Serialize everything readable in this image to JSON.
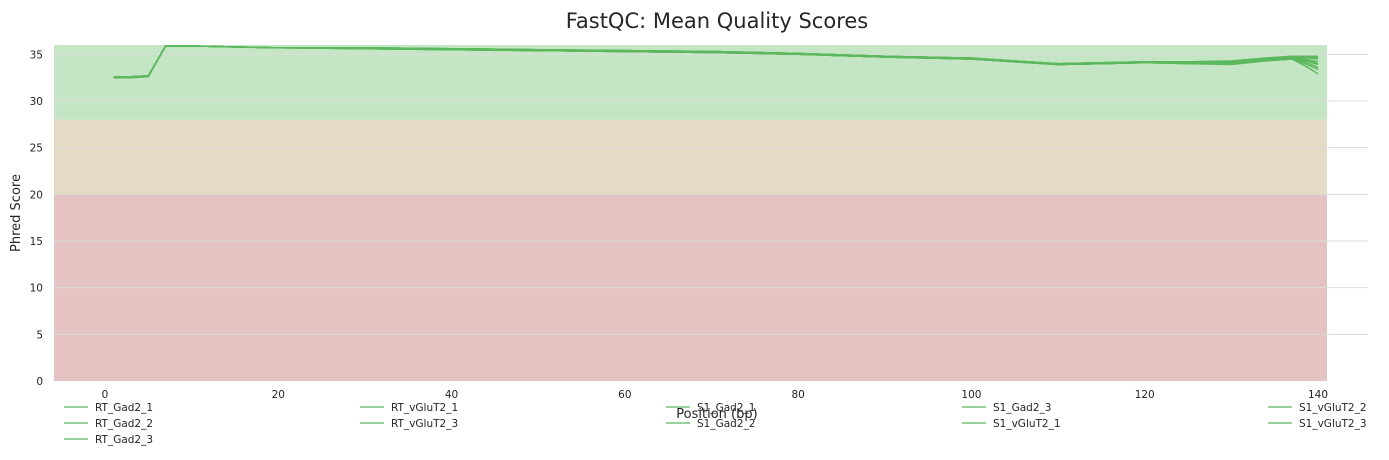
{
  "chart_data": {
    "type": "line",
    "title": "FastQC: Mean Quality Scores",
    "xlabel": "Position (bp)",
    "ylabel": "Phred Score",
    "xlim": [
      -6,
      141
    ],
    "ylim": [
      0,
      36
    ],
    "xticks": [
      0,
      20,
      40,
      60,
      80,
      100,
      120,
      140
    ],
    "yticks": [
      0,
      5,
      10,
      15,
      20,
      25,
      30,
      35
    ],
    "grid": true,
    "legend_position": "bottom",
    "bands": [
      {
        "from": 0,
        "to": 20,
        "color": "#e5c3c3"
      },
      {
        "from": 20,
        "to": 28,
        "color": "#e5dbc4"
      },
      {
        "from": 28,
        "to": 36,
        "color": "#c4e6c4"
      }
    ],
    "line_color": "#5cb85c",
    "x": [
      1,
      3,
      5,
      7,
      10,
      15,
      20,
      30,
      40,
      50,
      60,
      70,
      80,
      90,
      100,
      105,
      110,
      115,
      120,
      125,
      130,
      134,
      137,
      139,
      140
    ],
    "series": [
      {
        "name": "RT_Gad2_1",
        "values": [
          32.6,
          32.6,
          32.7,
          35.9,
          35.9,
          35.8,
          35.7,
          35.7,
          35.6,
          35.5,
          35.4,
          35.3,
          35.1,
          34.8,
          34.6,
          34.3,
          34.0,
          34.1,
          34.2,
          34.2,
          34.2,
          34.5,
          34.8,
          34.7,
          34.6
        ]
      },
      {
        "name": "RT_Gad2_2",
        "values": [
          32.5,
          32.5,
          32.6,
          35.9,
          35.9,
          35.8,
          35.7,
          35.7,
          35.5,
          35.4,
          35.3,
          35.2,
          35.0,
          34.7,
          34.5,
          34.2,
          33.9,
          34.0,
          34.1,
          34.1,
          34.0,
          34.4,
          34.6,
          34.2,
          33.9
        ]
      },
      {
        "name": "RT_Gad2_3",
        "values": [
          32.6,
          32.6,
          32.7,
          35.9,
          35.9,
          35.8,
          35.7,
          35.6,
          35.5,
          35.4,
          35.3,
          35.2,
          35.0,
          34.7,
          34.5,
          34.2,
          33.9,
          34.0,
          34.1,
          34.0,
          33.9,
          34.3,
          34.5,
          33.8,
          33.4
        ]
      },
      {
        "name": "RT_vGluT2_1",
        "values": [
          32.5,
          32.5,
          32.7,
          35.9,
          35.9,
          35.8,
          35.7,
          35.7,
          35.6,
          35.5,
          35.4,
          35.3,
          35.1,
          34.8,
          34.6,
          34.3,
          34.0,
          34.1,
          34.2,
          34.2,
          34.3,
          34.6,
          34.8,
          34.8,
          34.8
        ]
      },
      {
        "name": "RT_vGluT2_3",
        "values": [
          32.6,
          32.6,
          32.7,
          35.9,
          35.9,
          35.8,
          35.7,
          35.6,
          35.5,
          35.4,
          35.3,
          35.2,
          35.0,
          34.7,
          34.5,
          34.2,
          33.9,
          34.0,
          34.1,
          34.1,
          34.1,
          34.5,
          34.7,
          34.4,
          34.2
        ]
      },
      {
        "name": "S1_Gad2_1",
        "values": [
          32.6,
          32.6,
          32.7,
          35.9,
          35.9,
          35.8,
          35.7,
          35.7,
          35.6,
          35.5,
          35.4,
          35.3,
          35.1,
          34.8,
          34.6,
          34.3,
          34.0,
          34.1,
          34.2,
          34.2,
          34.2,
          34.5,
          34.7,
          34.6,
          34.5
        ]
      },
      {
        "name": "S1_Gad2_2",
        "values": [
          32.5,
          32.5,
          32.6,
          35.9,
          35.9,
          35.8,
          35.7,
          35.6,
          35.5,
          35.4,
          35.3,
          35.2,
          35.0,
          34.7,
          34.5,
          34.2,
          33.9,
          34.0,
          34.1,
          34.0,
          34.0,
          34.3,
          34.5,
          33.5,
          32.9
        ]
      },
      {
        "name": "S1_Gad2_3",
        "values": [
          32.6,
          32.6,
          32.7,
          35.9,
          35.9,
          35.8,
          35.7,
          35.7,
          35.5,
          35.4,
          35.3,
          35.2,
          35.0,
          34.7,
          34.5,
          34.2,
          33.9,
          34.0,
          34.1,
          34.1,
          34.1,
          34.4,
          34.6,
          34.3,
          34.0
        ]
      },
      {
        "name": "S1_vGluT2_1",
        "values": [
          32.6,
          32.6,
          32.7,
          35.9,
          35.9,
          35.8,
          35.7,
          35.7,
          35.6,
          35.5,
          35.4,
          35.3,
          35.1,
          34.8,
          34.6,
          34.3,
          34.0,
          34.1,
          34.2,
          34.2,
          34.2,
          34.5,
          34.8,
          34.7,
          34.7
        ]
      },
      {
        "name": "S1_vGluT2_2",
        "values": [
          32.5,
          32.5,
          32.7,
          35.9,
          35.9,
          35.8,
          35.7,
          35.7,
          35.6,
          35.5,
          35.4,
          35.3,
          35.1,
          34.8,
          34.6,
          34.3,
          34.0,
          34.1,
          34.2,
          34.2,
          34.3,
          34.6,
          34.8,
          34.8,
          34.8
        ]
      },
      {
        "name": "S1_vGluT2_3",
        "values": [
          32.6,
          32.6,
          32.7,
          35.9,
          35.9,
          35.8,
          35.7,
          35.6,
          35.5,
          35.4,
          35.3,
          35.2,
          35.0,
          34.7,
          34.5,
          34.2,
          33.9,
          34.0,
          34.1,
          34.1,
          34.0,
          34.4,
          34.6,
          34.0,
          33.6
        ]
      }
    ]
  }
}
